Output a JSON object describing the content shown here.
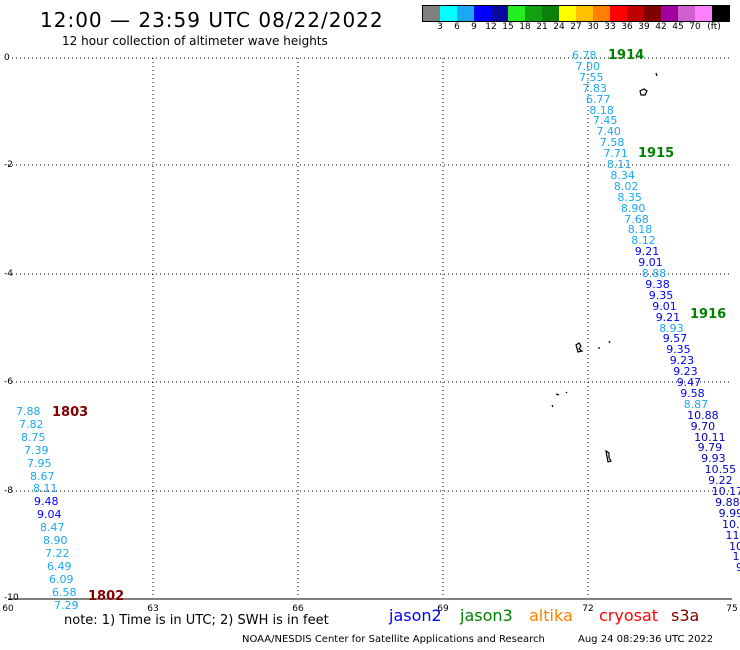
{
  "header": {
    "title": "12:00 — 23:59 UTC 08/22/2022",
    "subtitle": "12 hour collection of altimeter wave heights"
  },
  "colorbar": {
    "colors": [
      "#808080",
      "#00ffff",
      "#1aa8f0",
      "#0000ff",
      "#0a08a0",
      "#22ee22",
      "#10a010",
      "#0b800b",
      "#ffff00",
      "#ffc000",
      "#ff8000",
      "#ff0000",
      "#c00000",
      "#800000",
      "#a000a0",
      "#d060d0",
      "#ff80ff",
      "#000000"
    ],
    "labels": [
      "3",
      "6",
      "9",
      "12",
      "15",
      "18",
      "21",
      "24",
      "27",
      "30",
      "33",
      "36",
      "39",
      "42",
      "45",
      "70",
      "(ft)"
    ]
  },
  "axes": {
    "y_ticks": [
      "0",
      "-2",
      "-4",
      "-6",
      "-8",
      "-10"
    ],
    "x_ticks": [
      "60",
      "63",
      "66",
      "69",
      "72",
      "75"
    ]
  },
  "tracks": [
    {
      "values": [
        "6.78",
        "7.00",
        "7.55",
        "7.83",
        "6.77",
        "8.18",
        "7.45",
        "7.40",
        "7.58",
        "7.71",
        "8.11",
        "8.34",
        "8.02",
        "8.35",
        "8.90",
        "7.68",
        "8.18",
        "8.12",
        "9.21",
        "9.01",
        "8.88",
        "9.38",
        "9.35",
        "9.01",
        "9.21",
        "8.93",
        "9.57",
        "9.35",
        "9.23",
        "9.23",
        "9.47",
        "9.58",
        "8.87",
        "10.88",
        "9.70",
        "10.11",
        "9.79",
        "9.93",
        "10.55",
        "9.22",
        "10.17",
        "9.88",
        "9.99",
        "10.1",
        "11.2",
        "10.",
        "10",
        "9"
      ]
    },
    {
      "values": [
        "7.88",
        "7.82",
        "8.75",
        "7.39",
        "7.95",
        "8.67",
        "8.11",
        "9.48",
        "9.04",
        "8.47",
        "8.90",
        "7.22",
        "6.49",
        "6.09",
        "6.58",
        "7.29"
      ]
    }
  ],
  "time_labels": [
    {
      "text": "1914",
      "color": "#008000"
    },
    {
      "text": "1915",
      "color": "#008000"
    },
    {
      "text": "1916",
      "color": "#008000"
    },
    {
      "text": "1803",
      "color": "#800000"
    },
    {
      "text": "1802",
      "color": "#800000"
    }
  ],
  "footer": {
    "note": "note: 1) Time is in UTC; 2) SWH is in feet",
    "satellites": [
      {
        "name": "jason2",
        "color": "#0000ff"
      },
      {
        "name": "jason3",
        "color": "#008000"
      },
      {
        "name": "altika",
        "color": "#ff8000"
      },
      {
        "name": "cryosat",
        "color": "#ff0000"
      },
      {
        "name": "s3a",
        "color": "#800000"
      }
    ],
    "credit": "NOAA/NESDIS Center for Satellite Applications and Research",
    "timestamp": "Aug 24 08:29:36 UTC 2022"
  }
}
